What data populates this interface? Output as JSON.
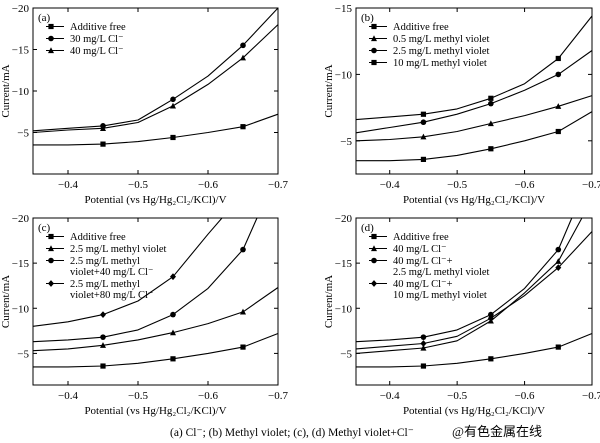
{
  "caption": "(a)  Cl⁻; (b) Methyl violet; (c), (d) Methyl violet+Cl⁻",
  "watermark": "@有色金属在线",
  "chart_data": [
    {
      "panel": "(a)",
      "type": "line",
      "xlabel": "Potential (vs Hg/Hg₂Cl₂/KCl)/V",
      "ylabel": "Current/mA",
      "xlim": [
        -0.35,
        -0.7
      ],
      "ylim": [
        0,
        -20
      ],
      "xticks": [
        -0.4,
        -0.5,
        -0.6,
        -0.7
      ],
      "xtick_labels": [
        "−0.4",
        "−0.5",
        "−0.6",
        "−0.7"
      ],
      "yticks": [
        -5,
        -10,
        -15,
        -20
      ],
      "ytick_labels": [
        "−5",
        "−10",
        "−15",
        "−20"
      ],
      "legend_position": "top-left",
      "series": [
        {
          "name": "Additive free",
          "marker": "square",
          "x": [
            -0.35,
            -0.4,
            -0.45,
            -0.5,
            -0.55,
            -0.6,
            -0.65,
            -0.7
          ],
          "y": [
            -3.5,
            -3.5,
            -3.6,
            -3.9,
            -4.4,
            -5.0,
            -5.7,
            -7.2
          ]
        },
        {
          "name": "30 mg/L Cl⁻",
          "marker": "circle",
          "x": [
            -0.35,
            -0.4,
            -0.45,
            -0.5,
            -0.53,
            -0.55,
            -0.6,
            -0.65,
            -0.7
          ],
          "y": [
            -5.2,
            -5.5,
            -5.8,
            -6.5,
            -8.0,
            -9.0,
            -11.8,
            -15.5,
            -20.0
          ]
        },
        {
          "name": "40 mg/L Cl⁻",
          "marker": "triangle",
          "x": [
            -0.35,
            -0.4,
            -0.45,
            -0.5,
            -0.55,
            -0.6,
            -0.65,
            -0.7
          ],
          "y": [
            -5.0,
            -5.3,
            -5.5,
            -6.2,
            -8.2,
            -10.8,
            -14.0,
            -18.0
          ]
        }
      ]
    },
    {
      "panel": "(b)",
      "type": "line",
      "xlabel": "Potential (vs Hg/Hg₂Cl₂/KCl)/V",
      "ylabel": "Current/mA",
      "xlim": [
        -0.35,
        -0.7
      ],
      "ylim": [
        -2.5,
        -15
      ],
      "xticks": [
        -0.4,
        -0.5,
        -0.6,
        -0.7
      ],
      "xtick_labels": [
        "−0.4",
        "−0.5",
        "−0.6",
        "−0.7"
      ],
      "yticks": [
        -5,
        -10,
        -15
      ],
      "ytick_labels": [
        "−5",
        "−10",
        "−15"
      ],
      "legend_position": "top-left",
      "series": [
        {
          "name": "Additive free",
          "marker": "square",
          "x": [
            -0.35,
            -0.4,
            -0.45,
            -0.5,
            -0.55,
            -0.6,
            -0.65,
            -0.7
          ],
          "y": [
            -3.5,
            -3.5,
            -3.6,
            -3.9,
            -4.4,
            -5.0,
            -5.7,
            -7.2
          ]
        },
        {
          "name": "0.5 mg/L methyl violet",
          "marker": "triangle",
          "x": [
            -0.35,
            -0.4,
            -0.45,
            -0.5,
            -0.55,
            -0.6,
            -0.65,
            -0.7
          ],
          "y": [
            -5.0,
            -5.1,
            -5.3,
            -5.7,
            -6.3,
            -6.9,
            -7.6,
            -8.4
          ]
        },
        {
          "name": "2.5 mg/L methyl violet",
          "marker": "circle",
          "x": [
            -0.35,
            -0.4,
            -0.45,
            -0.5,
            -0.55,
            -0.6,
            -0.65,
            -0.7
          ],
          "y": [
            -5.6,
            -6.0,
            -6.4,
            -7.0,
            -7.8,
            -8.8,
            -10.0,
            -11.8
          ]
        },
        {
          "name": "10 mg/L methyl violet",
          "marker": "square",
          "x": [
            -0.35,
            -0.4,
            -0.45,
            -0.5,
            -0.55,
            -0.6,
            -0.65,
            -0.7
          ],
          "y": [
            -6.6,
            -6.8,
            -7.0,
            -7.4,
            -8.2,
            -9.3,
            -11.2,
            -14.4
          ]
        }
      ]
    },
    {
      "panel": "(c)",
      "type": "line",
      "xlabel": "Potential (vs Hg/Hg₂Cl₂/KCl)/V",
      "ylabel": "Current/mA",
      "xlim": [
        -0.35,
        -0.7
      ],
      "ylim": [
        -1.5,
        -20
      ],
      "xticks": [
        -0.4,
        -0.5,
        -0.6,
        -0.7
      ],
      "xtick_labels": [
        "−0.4",
        "−0.5",
        "−0.6",
        "−0.7"
      ],
      "yticks": [
        -5,
        -10,
        -15,
        -20
      ],
      "ytick_labels": [
        "−5",
        "−10",
        "−15",
        "−20"
      ],
      "legend_position": "top-left",
      "series": [
        {
          "name": "Additive free",
          "marker": "square",
          "x": [
            -0.35,
            -0.4,
            -0.45,
            -0.5,
            -0.55,
            -0.6,
            -0.65,
            -0.7
          ],
          "y": [
            -3.5,
            -3.5,
            -3.6,
            -3.9,
            -4.4,
            -5.0,
            -5.7,
            -7.2
          ]
        },
        {
          "name": "2.5 mg/L methyl violet",
          "marker": "triangle",
          "x": [
            -0.35,
            -0.4,
            -0.45,
            -0.5,
            -0.55,
            -0.6,
            -0.65,
            -0.7
          ],
          "y": [
            -5.3,
            -5.5,
            -5.9,
            -6.5,
            -7.3,
            -8.3,
            -9.6,
            -12.3
          ]
        },
        {
          "name": "2.5 mg/L methyl violet+40 mg/L Cl⁻",
          "label_lines": [
            "2.5 mg/L methyl",
            "violet+40 mg/L Cl⁻"
          ],
          "marker": "circle",
          "x": [
            -0.35,
            -0.4,
            -0.45,
            -0.5,
            -0.55,
            -0.6,
            -0.65,
            -0.67
          ],
          "y": [
            -6.3,
            -6.5,
            -6.8,
            -7.6,
            -9.3,
            -12.2,
            -16.5,
            -20.0
          ]
        },
        {
          "name": "2.5 mg/L methyl violet+80 mg/L Cl⁻",
          "label_lines": [
            "2.5 mg/L methyl",
            "violet+80 mg/L Cl⁻"
          ],
          "marker": "diamond",
          "x": [
            -0.35,
            -0.4,
            -0.45,
            -0.5,
            -0.55,
            -0.6,
            -0.62
          ],
          "y": [
            -8.0,
            -8.5,
            -9.3,
            -10.8,
            -13.5,
            -18.2,
            -20.0
          ]
        }
      ]
    },
    {
      "panel": "(d)",
      "type": "line",
      "xlabel": "Potential (vs Hg/Hg₂Cl₂/KCl)/V",
      "ylabel": "Current/mA",
      "xlim": [
        -0.35,
        -0.7
      ],
      "ylim": [
        -1.5,
        -20
      ],
      "xticks": [
        -0.4,
        -0.5,
        -0.6,
        -0.7
      ],
      "xtick_labels": [
        "−0.4",
        "−0.5",
        "−0.6",
        "−0.7"
      ],
      "yticks": [
        -5,
        -10,
        -15,
        -20
      ],
      "ytick_labels": [
        "−5",
        "−10",
        "−15",
        "−20"
      ],
      "legend_position": "top-left",
      "series": [
        {
          "name": "Additive free",
          "marker": "square",
          "x": [
            -0.35,
            -0.4,
            -0.45,
            -0.5,
            -0.55,
            -0.6,
            -0.65,
            -0.7
          ],
          "y": [
            -3.5,
            -3.5,
            -3.6,
            -3.9,
            -4.4,
            -5.0,
            -5.7,
            -7.2
          ]
        },
        {
          "name": "40 mg/L Cl⁻",
          "marker": "triangle",
          "x": [
            -0.35,
            -0.4,
            -0.45,
            -0.5,
            -0.55,
            -0.6,
            -0.65,
            -0.685
          ],
          "y": [
            -5.0,
            -5.3,
            -5.6,
            -6.4,
            -8.6,
            -11.7,
            -15.2,
            -20.0
          ]
        },
        {
          "name": "40 mg/L Cl⁻+2.5 mg/L methyl violet",
          "label_lines": [
            "40 mg/L Cl⁻+",
            "2.5 mg/L methyl violet"
          ],
          "marker": "circle",
          "x": [
            -0.35,
            -0.4,
            -0.45,
            -0.5,
            -0.55,
            -0.6,
            -0.65,
            -0.67
          ],
          "y": [
            -6.3,
            -6.5,
            -6.8,
            -7.6,
            -9.3,
            -12.2,
            -16.5,
            -20.0
          ]
        },
        {
          "name": "40 mg/L Cl⁻+10 mg/L methyl violet",
          "label_lines": [
            "40 mg/L Cl⁻+",
            "10 mg/L methyl violet"
          ],
          "marker": "diamond",
          "x": [
            -0.35,
            -0.4,
            -0.45,
            -0.5,
            -0.55,
            -0.6,
            -0.65,
            -0.7
          ],
          "y": [
            -5.5,
            -5.8,
            -6.1,
            -6.9,
            -8.9,
            -11.4,
            -14.5,
            -18.5
          ]
        }
      ]
    }
  ]
}
